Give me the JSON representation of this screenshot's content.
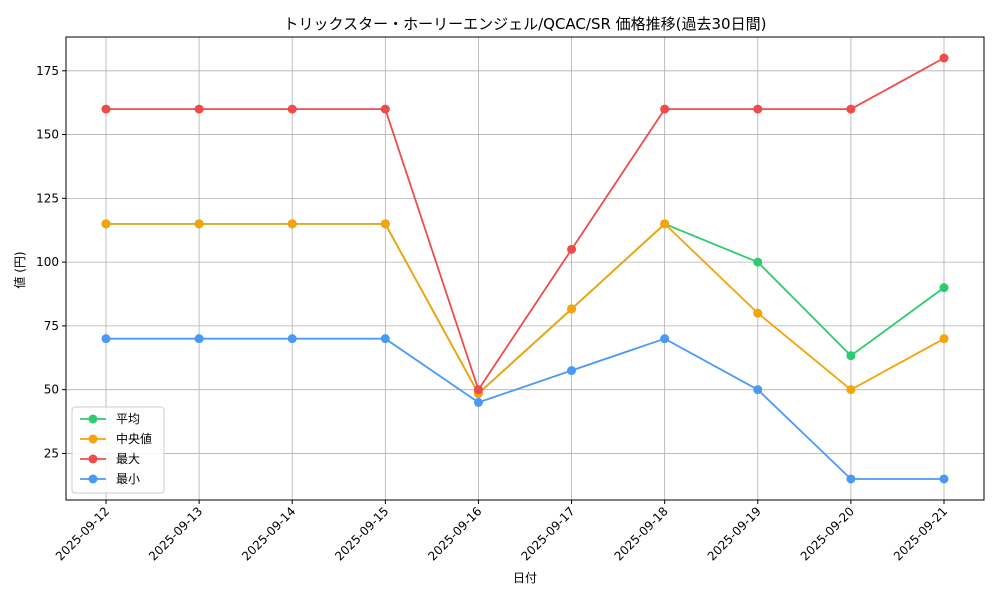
{
  "chart_data": {
    "type": "line",
    "title": "トリックスター・ホーリーエンジェル/QCAC/SR 価格推移(過去30日間)",
    "xlabel": "日付",
    "ylabel": "値 (円)",
    "categories": [
      "2025-09-12",
      "2025-09-13",
      "2025-09-14",
      "2025-09-15",
      "2025-09-16",
      "2025-09-17",
      "2025-09-18",
      "2025-09-19",
      "2025-09-20",
      "2025-09-21"
    ],
    "ylim": [
      6.75,
      188.25
    ],
    "yticks": [
      25,
      50,
      75,
      100,
      125,
      150,
      175
    ],
    "grid": true,
    "legend_position": "lower-left",
    "series": [
      {
        "name": "平均",
        "color": "#2ecc71",
        "values": [
          115,
          115,
          115,
          115,
          48.5,
          81.67,
          115,
          100,
          63.33,
          90
        ]
      },
      {
        "name": "中央値",
        "color": "#f5a30a",
        "values": [
          115,
          115,
          115,
          115,
          48.5,
          81.67,
          115,
          80,
          50,
          70
        ]
      },
      {
        "name": "最大",
        "color": "#f04b4b",
        "values": [
          160,
          160,
          160,
          160,
          50,
          105,
          160,
          160,
          160,
          180
        ]
      },
      {
        "name": "最小",
        "color": "#4a9af5",
        "values": [
          70,
          70,
          70,
          70,
          45,
          57.5,
          70,
          50,
          15,
          15
        ]
      }
    ]
  }
}
